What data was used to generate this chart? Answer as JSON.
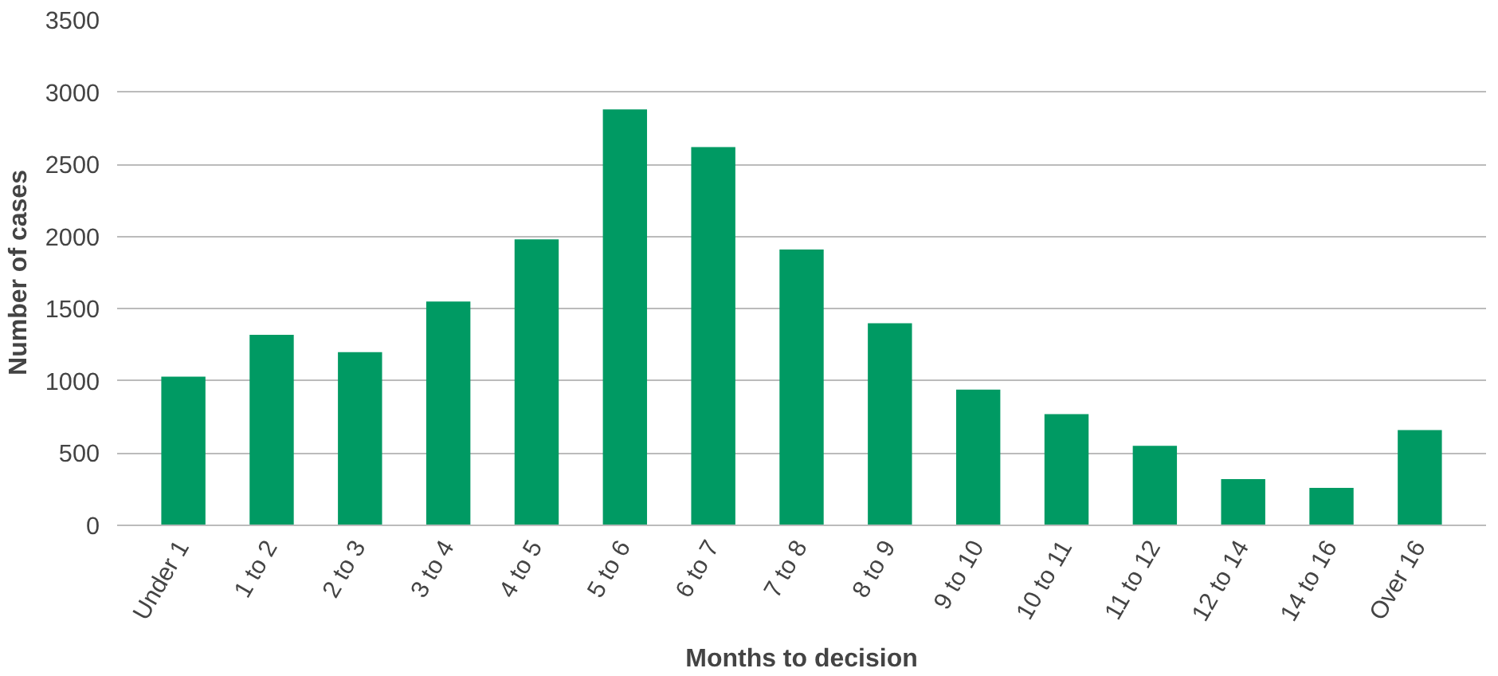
{
  "chart_data": {
    "type": "bar",
    "xlabel": "Months to decision",
    "ylabel": "Number of cases",
    "categories": [
      "Under 1",
      "1 to 2",
      "2 to 3",
      "3 to 4",
      "4 to 5",
      "5 to 6",
      "6 to 7",
      "7 to 8",
      "8 to 9",
      "9 to 10",
      "10 to 11",
      "11 to 12",
      "12 to 14",
      "14 to 16",
      "Over 16"
    ],
    "values": [
      1030,
      1320,
      1200,
      1550,
      1980,
      2880,
      2620,
      1910,
      1400,
      940,
      770,
      550,
      320,
      260,
      660
    ],
    "color": "#009a63",
    "ylim": [
      0,
      3500
    ],
    "yticks": [
      0,
      500,
      1000,
      1500,
      2000,
      2500,
      3000,
      3500
    ],
    "grid": "y"
  }
}
